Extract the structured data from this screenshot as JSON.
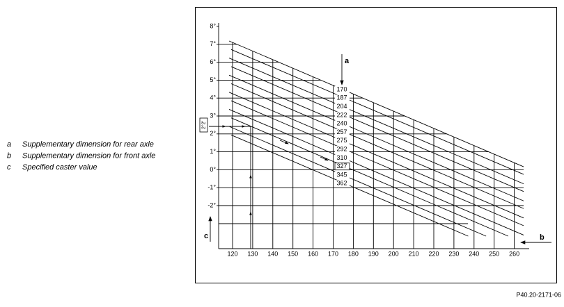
{
  "legend": [
    {
      "key": "a",
      "text": "Supplementary dimension for rear axle"
    },
    {
      "key": "b",
      "text": "Supplementary dimension for front axle"
    },
    {
      "key": "c",
      "text": "Specified caster value"
    }
  ],
  "diagram": {
    "y_labels": [
      "8°",
      "7°",
      "6°",
      "5°",
      "4°",
      "3°",
      "2°",
      "1°",
      "0°",
      "-1°",
      "-2°"
    ],
    "x_labels": [
      "120",
      "130",
      "140",
      "150",
      "160",
      "170",
      "180",
      "190",
      "200",
      "210",
      "220",
      "230",
      "240",
      "250",
      "260"
    ],
    "line_labels": [
      "170",
      "187",
      "204",
      "222",
      "240",
      "257",
      "275",
      "292",
      "310",
      "327",
      "345",
      "362"
    ],
    "markers": {
      "a": "a",
      "b": "b",
      "c": "c"
    },
    "side_label": "2°2'"
  },
  "footer": "P40.20-2171-06"
}
